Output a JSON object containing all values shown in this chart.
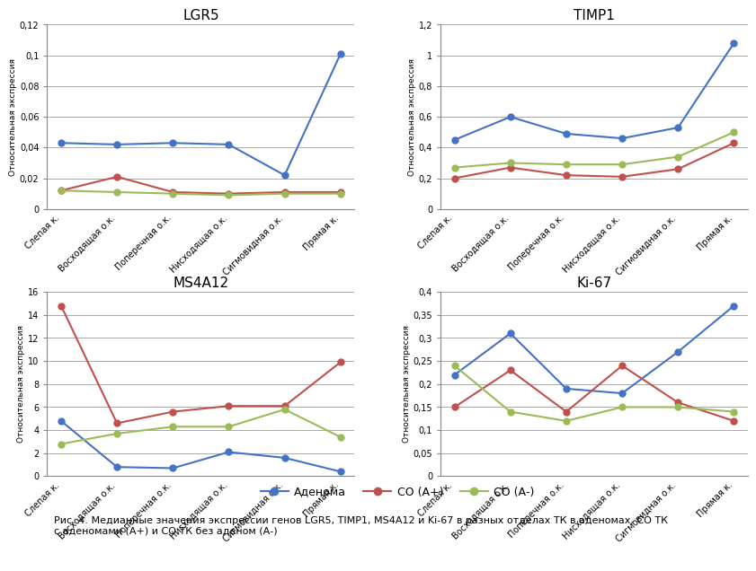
{
  "categories": [
    "Слепая к.",
    "Восходящая о.к.",
    "Поперечная о.к.",
    "Нисходящая о.к.",
    "Сигмовидная о.к.",
    "Прямая к."
  ],
  "LGR5": {
    "title": "LGR5",
    "adenoma": [
      0.043,
      0.042,
      0.043,
      0.042,
      0.022,
      0.101
    ],
    "co_plus": [
      0.012,
      0.021,
      0.011,
      0.01,
      0.011,
      0.011
    ],
    "co_minus": [
      0.012,
      0.011,
      0.01,
      0.009,
      0.01,
      0.01
    ],
    "ylim": [
      0,
      0.12
    ],
    "yticks": [
      0,
      0.02,
      0.04,
      0.06,
      0.08,
      0.1,
      0.12
    ]
  },
  "TIMP1": {
    "title": "TIMP1",
    "adenoma": [
      0.45,
      0.6,
      0.49,
      0.46,
      0.53,
      1.08
    ],
    "co_plus": [
      0.2,
      0.27,
      0.22,
      0.21,
      0.26,
      0.43
    ],
    "co_minus": [
      0.27,
      0.3,
      0.29,
      0.29,
      0.34,
      0.5
    ],
    "ylim": [
      0,
      1.2
    ],
    "yticks": [
      0,
      0.2,
      0.4,
      0.6,
      0.8,
      1.0,
      1.2
    ]
  },
  "MS4A12": {
    "title": "MS4A12",
    "adenoma": [
      4.8,
      0.8,
      0.7,
      2.1,
      1.6,
      0.4
    ],
    "co_plus": [
      14.8,
      4.6,
      5.6,
      6.1,
      6.1,
      9.9
    ],
    "co_minus": [
      2.8,
      3.7,
      4.3,
      4.3,
      5.8,
      3.4
    ],
    "ylim": [
      0,
      16
    ],
    "yticks": [
      0,
      2,
      4,
      6,
      8,
      10,
      12,
      14,
      16
    ]
  },
  "Ki67": {
    "title": "Ki-67",
    "adenoma": [
      0.22,
      0.31,
      0.19,
      0.18,
      0.27,
      0.37
    ],
    "co_plus": [
      0.15,
      0.23,
      0.14,
      0.24,
      0.16,
      0.12
    ],
    "co_minus": [
      0.24,
      0.14,
      0.12,
      0.15,
      0.15,
      0.14
    ],
    "ylim": [
      0,
      0.4
    ],
    "yticks": [
      0,
      0.05,
      0.1,
      0.15,
      0.2,
      0.25,
      0.3,
      0.35,
      0.4
    ]
  },
  "colors": {
    "adenoma": "#4472C4",
    "co_plus": "#C0504D",
    "co_minus": "#9BBB59"
  },
  "legend_labels": [
    "Аденома",
    "СО (А+)",
    "СО (А-)"
  ],
  "ylabel": "Относительная экспрессия",
  "caption": "Рис. 4. Медианные значения экспрессии генов ",
  "caption_genes": "LGR5, TIMP1, MS4A12",
  "caption_ki67": " и Ki-67",
  "caption_rest": " в разных отделах ТК в аденомах, СО ТК\nс аденомами (А+) и СО ТК без аденом (А-)"
}
